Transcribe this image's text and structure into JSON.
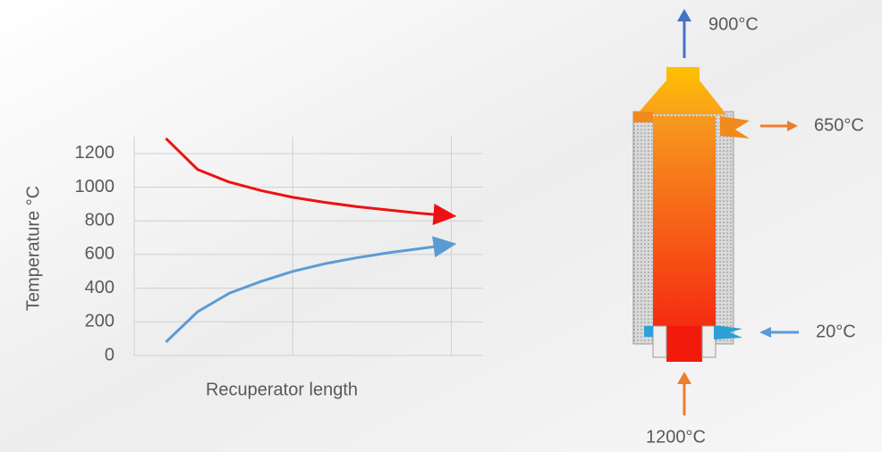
{
  "chart_data": {
    "type": "line",
    "y_label": "Temperature °C",
    "x_label": "Recuperator length",
    "x": [
      0.1,
      0.2,
      0.3,
      0.4,
      0.5,
      0.6,
      0.7,
      0.8,
      0.9,
      1.0
    ],
    "series": [
      {
        "color": "#ee1111",
        "values": [
          1290,
          1105,
          1030,
          980,
          940,
          910,
          885,
          865,
          845,
          830
        ]
      },
      {
        "color": "#5b9bd5",
        "values": [
          80,
          260,
          370,
          440,
          500,
          545,
          580,
          610,
          635,
          660
        ]
      }
    ],
    "xlim": [
      0,
      1.1
    ],
    "xticks": [
      0,
      0.5,
      1.0
    ],
    "ylim": [
      0,
      1300
    ],
    "yticks": [
      0,
      200,
      400,
      600,
      800,
      1000,
      1200
    ],
    "grid": true
  },
  "diagram": {
    "labels": [
      "900°C",
      "650°C",
      "20°C",
      "1200°C"
    ]
  }
}
